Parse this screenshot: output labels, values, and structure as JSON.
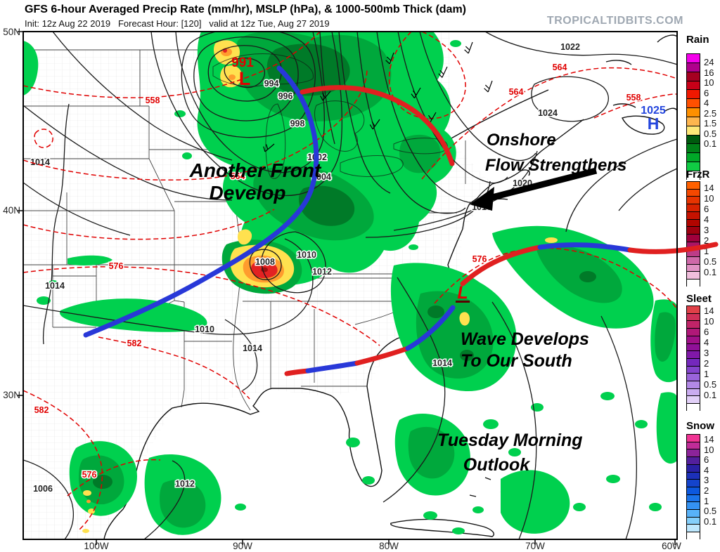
{
  "header": {
    "title": "GFS 6-hour Averaged Precip Rate (mm/hr), MSLP (hPa), & 1000-500mb Thick (dam)",
    "subtitle": "Init: 12z Aug 22 2019   Forecast Hour: [120]   valid at 12z Tue, Aug 27 2019",
    "watermark": "TROPICALTIDBITS.COM"
  },
  "axes": {
    "lat_labels": [
      "50N",
      "40N",
      "30N"
    ],
    "lon_labels": [
      "100W",
      "90W",
      "80W",
      "70W",
      "60W"
    ]
  },
  "legend": {
    "sections": [
      {
        "title": "Rain",
        "labels": [
          "24",
          "16",
          "10",
          "6",
          "4",
          "2.5",
          "1.5",
          "0.5",
          "0.1"
        ],
        "colors": [
          "#F400EB",
          "#B0008C",
          "#A50021",
          "#C80018",
          "#F01800",
          "#FF5000",
          "#FF9000",
          "#FFB64E",
          "#FFE878",
          "#005A0E",
          "#008018",
          "#00A828",
          "#10CC44",
          "#FFFFFF"
        ]
      },
      {
        "title": "FrzR",
        "labels": [
          "14",
          "10",
          "6",
          "4",
          "3",
          "2",
          "1",
          "0.5",
          "0.1"
        ],
        "colors": [
          "#FF6000",
          "#F54800",
          "#E83400",
          "#D92200",
          "#C61200",
          "#B10500",
          "#9E0010",
          "#A0003C",
          "#AC1464",
          "#BC3C88",
          "#CE68A8",
          "#E092C4",
          "#F0BEDC",
          "#FFFFFF"
        ]
      },
      {
        "title": "Sleet",
        "labels": [
          "14",
          "10",
          "6",
          "4",
          "3",
          "2",
          "1",
          "0.5",
          "0.1"
        ],
        "colors": [
          "#E04048",
          "#D03058",
          "#C02468",
          "#B01878",
          "#A01088",
          "#901098",
          "#8018A8",
          "#7428BC",
          "#8444CC",
          "#9A64DA",
          "#B288E6",
          "#CAACF0",
          "#E2D0F8",
          "#FFFFFF"
        ]
      },
      {
        "title": "Snow",
        "labels": [
          "14",
          "10",
          "6",
          "4",
          "3",
          "2",
          "1",
          "0.5",
          "0.1"
        ],
        "colors": [
          "#F03494",
          "#C02C98",
          "#8C2499",
          "#531F9C",
          "#2A20A4",
          "#1C30B8",
          "#1444CC",
          "#0C58DE",
          "#1A74EA",
          "#3492F2",
          "#58B2F8",
          "#84CFFB",
          "#BEE8FE",
          "#FFFFFF"
        ]
      }
    ]
  },
  "annotations": {
    "front_line1": "Another Front",
    "front_line2": "Develop",
    "onshore_line1": "Onshore",
    "onshore_line2": "Flow Strengthens",
    "wave_line1": "Wave Develops",
    "wave_line2": "To Our South",
    "outlook_line1": "Tuesday Morning",
    "outlook_line2": "Outlook"
  },
  "markers": {
    "low1_value": "991",
    "low1_symbol": "L",
    "low2_symbol": "L",
    "high_value": "1025",
    "high_symbol": "H"
  },
  "isobar_labels": [
    "994",
    "996",
    "998",
    "1002",
    "1004",
    "1008",
    "1010",
    "1012",
    "1010",
    "1014",
    "1014",
    "1016",
    "1020",
    "1022",
    "1024",
    "1006",
    "1012",
    "1014",
    "1014"
  ],
  "thickness_labels": [
    "558",
    "564",
    "558",
    "564",
    "564",
    "576",
    "576",
    "582",
    "582",
    "576"
  ],
  "colors": {
    "precip_light": "#00D04E",
    "precip_mid": "#00A83C",
    "precip_dark": "#007A28",
    "heavy_yellow": "#FFE14F",
    "heavy_orange": "#FF9C2E",
    "heavy_red": "#E32222",
    "cold_front": "#2838D8",
    "warm_front": "#E02020",
    "isobar": "#1A1A1A",
    "thickness": "#E00000",
    "low_marker": "#E00000",
    "high_marker": "#2244DD"
  }
}
